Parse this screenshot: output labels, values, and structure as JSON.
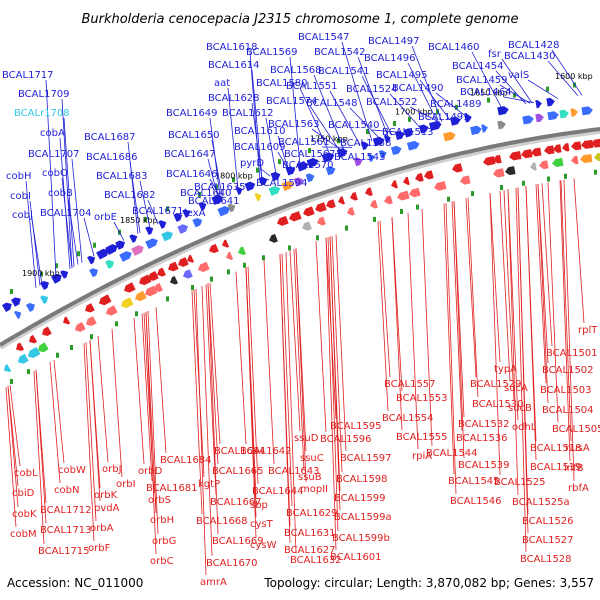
{
  "title": "Burkholderia cenocepacia J2315 chromosome 1, complete genome",
  "accession": "Accession: NC_011000",
  "summary": "Topology: circular; Length: 3,870,082 bp; Genes: 3,557",
  "colors": {
    "forward": "#1f1fd6",
    "reverse": "#e02020",
    "highlight": "#33c7e6",
    "backbone": "#7a7a7a"
  },
  "ticks": [
    "1600 kbp",
    "1650 kbp",
    "1700 kbp",
    "1750 kbp",
    "1800 kbp",
    "1850 kbp",
    "1900 kbp"
  ],
  "forward_labels": [
    "BCAL1717",
    "BCAL1709",
    "BCALr1708",
    "cobA",
    "BCAL1707",
    "cobH",
    "cobO",
    "cobI",
    "cobB",
    "cobJ",
    "BCAL1704",
    "BCAL1687",
    "BCAL1686",
    "BCAL1683",
    "orbE",
    "BCAL1682",
    "BCAL1671",
    "BCAL1649",
    "BCAL1650",
    "BCAL1647",
    "BCAL1646",
    "BCAL1640",
    "BCAL1635",
    "BCAL1641",
    "lexA",
    "BCAL1618",
    "BCAL1614",
    "aat",
    "BCAL1628",
    "BCAL1612",
    "BCAL1610",
    "BCAL1609",
    "pyrD",
    "BCAL1569",
    "BCAL1580",
    "BCAL1568",
    "BCAL1574",
    "BCAL1563",
    "BCAL1561",
    "BCAL1567",
    "BCAL1570",
    "BCAL1594",
    "BCAL1547",
    "BCAL1542",
    "BCAL1541",
    "BCAL1551",
    "BCAL1548",
    "BCAL1540",
    "BCAL1538",
    "BCAL1543",
    "BCAL1497",
    "BCAL1496",
    "BCAL1495",
    "BCAL1524",
    "BCAL1522",
    "BCAL1490",
    "BCAL1489",
    "BCAL1491",
    "BCAL1513",
    "BCAL1460",
    "fsr",
    "BCAL1454",
    "BCAL1459",
    "BCAL1464",
    "BCAL1428",
    "BCAL1430",
    "valS"
  ],
  "reverse_labels": [
    "cobL",
    "cbiD",
    "cobK",
    "cobM",
    "cobW",
    "cobN",
    "BCAL1712",
    "BCAL1713",
    "BCAL1715",
    "orbJ",
    "orbK",
    "pvdA",
    "orbA",
    "orbF",
    "orbI",
    "BCAL1684",
    "orbD",
    "BCAL1681",
    "orbS",
    "orbH",
    "orbG",
    "orbC",
    "BCAL1664",
    "BCAL1665",
    "kgtP",
    "BCAL1667",
    "BCAL1668",
    "BCAL1669",
    "BCAL1670",
    "amrA",
    "BCAL1642",
    "BCAL1643",
    "sbp",
    "cysT",
    "cysW",
    "BCAL1644",
    "BCAL1629",
    "BCAL1631",
    "BCAL1627",
    "BCAL1632",
    "ssuD",
    "ssuC",
    "ssuB",
    "mopII",
    "BCAL1595",
    "BCAL1596",
    "BCAL1597",
    "BCAL1598",
    "BCAL1599",
    "BCAL1599a",
    "BCAL1599b",
    "BCAL1601",
    "BCAL1557",
    "BCAL1553",
    "BCAL1554",
    "BCAL1555",
    "rpiA",
    "BCAL1544",
    "BCAL1529",
    "BCAL1530",
    "BCAL1532",
    "BCAL1536",
    "BCAL1539",
    "BCAL1545",
    "BCAL1546",
    "typA",
    "sucA",
    "sucB",
    "odhL",
    "BCAL1518",
    "BCAL1519",
    "BCAL1525",
    "BCAL1525a",
    "BCAL1526",
    "BCAL1527",
    "BCAL1528",
    "rplT",
    "BCAL1501",
    "BCAL1502",
    "BCAL1503",
    "BCAL1504",
    "BCAL1505",
    "nusA",
    "infB",
    "rbfA"
  ]
}
